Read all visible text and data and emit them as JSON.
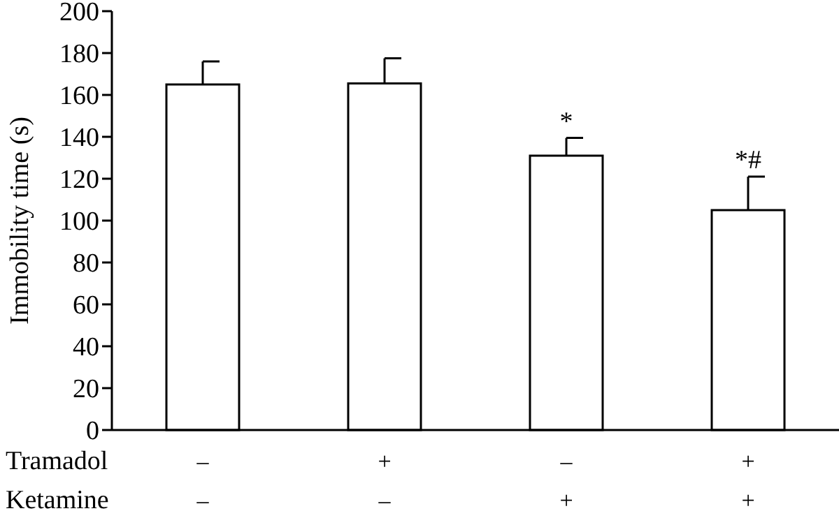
{
  "chart_data": {
    "type": "bar",
    "ylabel": "Immobility time (s)",
    "categories": [
      "–\n–",
      "+\n–",
      "–\n+",
      "+\n+"
    ],
    "values": [
      165,
      165.5,
      131,
      105
    ],
    "errors": [
      11,
      12,
      8.5,
      16
    ],
    "color": "#ffffff",
    "ylim": [
      0,
      200
    ],
    "yticks": [
      0,
      20,
      40,
      60,
      80,
      100,
      120,
      140,
      160,
      180,
      200
    ],
    "annotations": [
      "Tramadol",
      "Ketamine",
      {
        "text": "*",
        "x": "–\n+",
        "y": 139.5
      },
      {
        "text": "*#",
        "x": "+\n+",
        "y": 121
      }
    ]
  }
}
